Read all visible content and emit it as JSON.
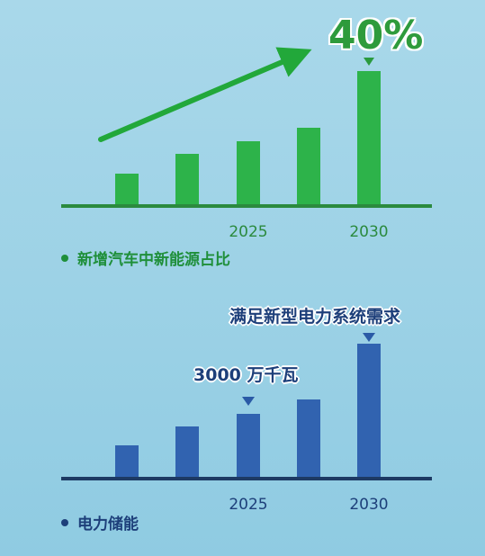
{
  "chart_data": [
    {
      "type": "bar",
      "categories": [
        "",
        "",
        "2025",
        "",
        "2030"
      ],
      "values": [
        36,
        58,
        72,
        87,
        150
      ],
      "ylim": [
        0,
        160
      ],
      "grid": false,
      "annotations": [
        {
          "category_index": 4,
          "text": "40%"
        }
      ],
      "legend": "新增汽车中新能源占比",
      "colors": {
        "bar": "#2db34a",
        "axis": "#2b8a3e",
        "tick": "#2b8a3e",
        "arrow": "#22a83a"
      }
    },
    {
      "type": "bar",
      "categories": [
        "",
        "",
        "2025",
        "",
        "2030"
      ],
      "values": [
        37,
        58,
        72,
        88,
        150
      ],
      "ylim": [
        0,
        160
      ],
      "grid": false,
      "annotations": [
        {
          "category_index": 2,
          "text": "3000 万千瓦"
        },
        {
          "category_index": 4,
          "text": "满足新型电力系统需求"
        }
      ],
      "legend": "电力储能",
      "colors": {
        "bar": "#3163b0",
        "axis": "#1d3a63",
        "tick": "#1d3f7a",
        "marker": "#2a5aa6"
      }
    }
  ]
}
